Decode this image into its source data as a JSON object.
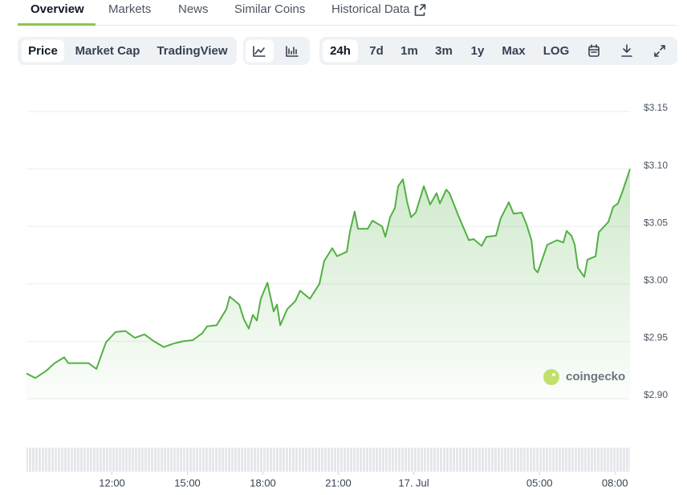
{
  "tabs": [
    "Overview",
    "Markets",
    "News",
    "Similar Coins",
    "Historical Data"
  ],
  "chart_modes": [
    "Price",
    "Market Cap",
    "TradingView"
  ],
  "ranges": [
    "24h",
    "7d",
    "1m",
    "3m",
    "1y",
    "Max",
    "LOG"
  ],
  "watermark": "coingecko",
  "chart_data": {
    "type": "area",
    "color": "#52b043",
    "grid": true,
    "y_axis_side": "right",
    "xlim": [
      8.6,
      32.6
    ],
    "xticks": [
      {
        "value": 12,
        "label": "12:00"
      },
      {
        "value": 15,
        "label": "15:00"
      },
      {
        "value": 18,
        "label": "18:00"
      },
      {
        "value": 21,
        "label": "21:00"
      },
      {
        "value": 24,
        "label": "17. Jul"
      },
      {
        "value": 29,
        "label": "05:00"
      },
      {
        "value": 32,
        "label": "08:00"
      }
    ],
    "ylim": [
      2.9,
      3.15
    ],
    "yticks": [
      {
        "value": 2.9,
        "label": "$2.90"
      },
      {
        "value": 2.95,
        "label": "$2.95"
      },
      {
        "value": 3.0,
        "label": "$3.00"
      },
      {
        "value": 3.05,
        "label": "$3.05"
      },
      {
        "value": 3.1,
        "label": "$3.10"
      },
      {
        "value": 3.15,
        "label": "$3.15"
      }
    ],
    "x": [
      8.6,
      8.95,
      9.37,
      9.72,
      10.1,
      10.26,
      10.64,
      11.06,
      11.38,
      11.76,
      12.14,
      12.53,
      12.91,
      13.29,
      13.67,
      14.06,
      14.44,
      14.82,
      15.21,
      15.59,
      15.78,
      16.16,
      16.55,
      16.68,
      17.06,
      17.25,
      17.44,
      17.6,
      17.76,
      17.92,
      18.18,
      18.43,
      18.56,
      18.69,
      18.97,
      19.29,
      19.48,
      19.87,
      20.25,
      20.44,
      20.76,
      20.95,
      21.34,
      21.46,
      21.65,
      21.78,
      22.17,
      22.36,
      22.74,
      22.87,
      23.06,
      23.25,
      23.38,
      23.57,
      23.73,
      23.89,
      24.08,
      24.4,
      24.65,
      24.91,
      25.04,
      25.29,
      25.42,
      25.8,
      26.19,
      26.38,
      26.7,
      26.89,
      27.27,
      27.46,
      27.78,
      27.97,
      28.29,
      28.48,
      28.68,
      28.8,
      28.93,
      29.31,
      29.7,
      29.95,
      30.08,
      30.27,
      30.4,
      30.53,
      30.78,
      30.91,
      31.23,
      31.36,
      31.74,
      31.93,
      32.12,
      32.31,
      32.6
    ],
    "values": [
      2.922,
      2.918,
      2.924,
      2.931,
      2.936,
      2.931,
      2.931,
      2.931,
      2.926,
      2.949,
      2.958,
      2.959,
      2.953,
      2.956,
      2.95,
      2.945,
      2.948,
      2.95,
      2.951,
      2.957,
      2.963,
      2.964,
      2.978,
      2.989,
      2.982,
      2.969,
      2.961,
      2.973,
      2.968,
      2.987,
      3.001,
      2.976,
      2.982,
      2.964,
      2.978,
      2.985,
      2.994,
      2.987,
      3.0,
      3.02,
      3.031,
      3.024,
      3.028,
      3.045,
      3.063,
      3.048,
      3.048,
      3.055,
      3.05,
      3.041,
      3.058,
      3.066,
      3.085,
      3.091,
      3.072,
      3.058,
      3.062,
      3.085,
      3.069,
      3.079,
      3.07,
      3.082,
      3.079,
      3.058,
      3.038,
      3.039,
      3.033,
      3.041,
      3.042,
      3.057,
      3.071,
      3.061,
      3.062,
      3.052,
      3.038,
      3.013,
      3.01,
      3.034,
      3.038,
      3.036,
      3.046,
      3.042,
      3.034,
      3.014,
      3.006,
      3.021,
      3.024,
      3.045,
      3.054,
      3.067,
      3.07,
      3.081,
      3.1
    ]
  }
}
